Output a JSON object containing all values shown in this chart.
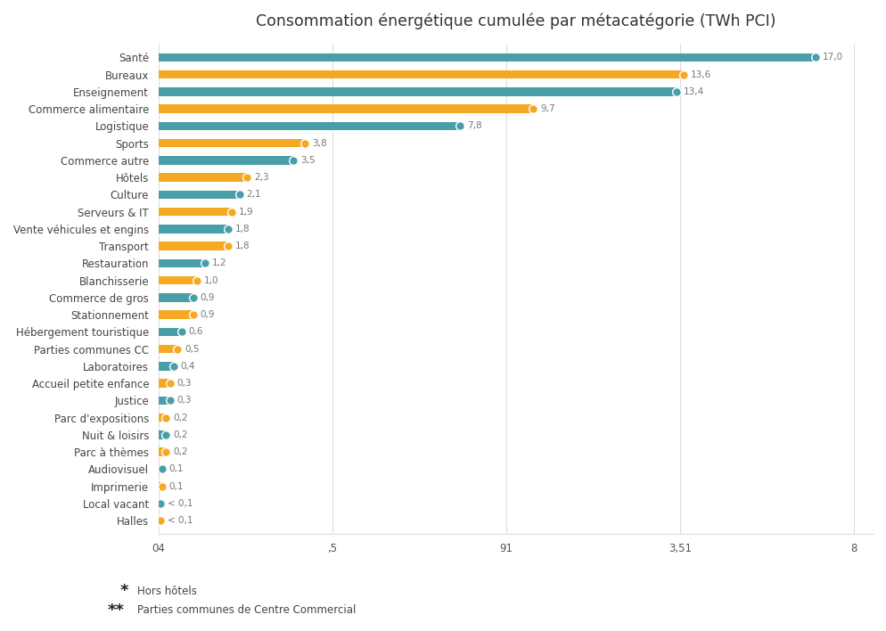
{
  "title": "Consommation énergétique cumulée par métacatégorie (TWh PCI)",
  "categories": [
    "Santé",
    "Bureaux",
    "Enseignement",
    "Commerce alimentaire",
    "Logistique",
    "Sports",
    "Commerce autre",
    "Hôtels",
    "Culture",
    "Serveurs & IT",
    "Vente véhicules et engins",
    "Transport",
    "Restauration",
    "Blanchisserie",
    "Commerce de gros",
    "Stationnement",
    "Hébergement touristique",
    "Parties communes CC",
    "Laboratoires",
    "Accueil petite enfance",
    "Justice",
    "Parc d'expositions",
    "Nuit & loisirs",
    "Parc à thèmes",
    "Audiovisuel",
    "Imprimerie",
    "Local vacant",
    "Halles"
  ],
  "values": [
    17.0,
    13.6,
    13.4,
    9.7,
    7.8,
    3.8,
    3.5,
    2.3,
    2.1,
    1.9,
    1.8,
    1.8,
    1.2,
    1.0,
    0.9,
    0.9,
    0.6,
    0.5,
    0.4,
    0.3,
    0.3,
    0.2,
    0.2,
    0.2,
    0.1,
    0.1,
    0.05,
    0.05
  ],
  "labels": [
    "17,0",
    "13,6",
    "13,4",
    "9,7",
    "7,8",
    "3,8",
    "3,5",
    "2,3",
    "2,1",
    "1,9",
    "1,8",
    "1,8",
    "1,2",
    "1,0",
    "0,9",
    "0,9",
    "0,6",
    "0,5",
    "0,4",
    "0,3",
    "0,3",
    "0,2",
    "0,2",
    "0,2",
    "0,1",
    "0,1",
    "< 0,1",
    "< 0,1"
  ],
  "colors": [
    "#4A9EA8",
    "#F5A824",
    "#4A9EA8",
    "#F5A824",
    "#4A9EA8",
    "#F5A824",
    "#4A9EA8",
    "#F5A824",
    "#4A9EA8",
    "#F5A824",
    "#4A9EA8",
    "#F5A824",
    "#4A9EA8",
    "#F5A824",
    "#4A9EA8",
    "#F5A824",
    "#4A9EA8",
    "#F5A824",
    "#4A9EA8",
    "#F5A824",
    "#4A9EA8",
    "#F5A824",
    "#4A9EA8",
    "#F5A824",
    "#4A9EA8",
    "#F5A824",
    "#4A9EA8",
    "#F5A824"
  ],
  "xlim_max": 18.5,
  "xtick_positions": [
    0.0,
    4.5,
    9.0,
    13.5,
    18.0
  ],
  "xtick_labels": [
    "04",
    ",5",
    "91",
    "3,51",
    "8"
  ],
  "background_color": "#FFFFFF",
  "bar_height": 0.5,
  "grid_color": "#DDDDDD",
  "label_color": "#777777",
  "title_color": "#333333",
  "footnote1": "Hors hôtels",
  "footnote2": "Parties communes de Centre Commercial"
}
